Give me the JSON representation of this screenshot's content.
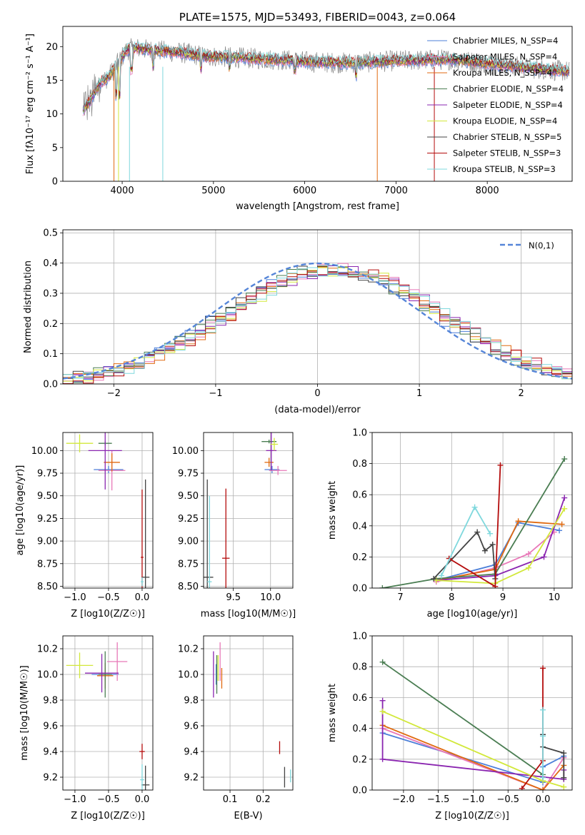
{
  "colors": {
    "chabrier_miles": "#4c7fd9",
    "salpeter_miles": "#e878b8",
    "kroupa_miles": "#e06a10",
    "chabrier_elodie": "#4a7d52",
    "salpeter_elodie": "#8a25b0",
    "kroupa_elodie": "#d2e83a",
    "chabrier_stelib": "#444444",
    "salpeter_stelib": "#b40c0c",
    "kroupa_stelib": "#7fd8dd"
  },
  "chart_data": [
    {
      "type": "line",
      "title": "PLATE=1575, MJD=53493, FIBERID=0043, z=0.064",
      "xlabel": "wavelength [Angstrom, rest frame]",
      "ylabel": "Flux [fλ10⁻¹⁷ erg cm⁻² s⁻¹ A⁻¹]",
      "xlim": [
        3350,
        8930
      ],
      "ylim": [
        0,
        23
      ],
      "xticks": [
        "4000",
        "5000",
        "6000",
        "7000",
        "8000"
      ],
      "yticks": [
        "0",
        "5",
        "10",
        "15",
        "20"
      ],
      "legend": [
        "Chabrier MILES, N_SSP=4",
        "Salpeter MILES, N_SSP=4",
        "Kroupa MILES, N_SSP=4",
        "Chabrier ELODIE, N_SSP=4",
        "Salpeter ELODIE, N_SSP=4",
        "Kroupa ELODIE, N_SSP=4",
        "Chabrier STELIB, N_SSP=5",
        "Salpeter STELIB, N_SSP=3",
        "Kroupa STELIB, N_SSP=3"
      ],
      "legend_placement": "right",
      "spectrum_envelope": {
        "x": [
          3570,
          3650,
          3750,
          3850,
          3950,
          4050,
          4150,
          4300,
          4500,
          4700,
          4900,
          5200,
          5500,
          5800,
          6100,
          6400,
          6700,
          7000,
          7300,
          7600,
          8000,
          8400,
          8900
        ],
        "y": [
          10.5,
          12.0,
          14.5,
          15.5,
          17.5,
          19.5,
          19.8,
          19.5,
          19.3,
          19.0,
          18.6,
          18.4,
          18.2,
          18.0,
          17.7,
          17.6,
          17.7,
          17.9,
          18.0,
          18.1,
          17.5,
          16.9,
          16.3
        ]
      },
      "grid": false
    },
    {
      "type": "line",
      "xlabel": "(data-model)/error",
      "ylabel": "Normed distribution",
      "xlim": [
        -2.5,
        2.5
      ],
      "ylim": [
        0,
        0.51
      ],
      "xticks": [
        "−2",
        "−1",
        "0",
        "1",
        "2"
      ],
      "yticks": [
        "0.0",
        "0.1",
        "0.2",
        "0.3",
        "0.4",
        "0.5"
      ],
      "legend": [
        "N(0,1)"
      ],
      "legend_placement": "top-right",
      "grid": true,
      "gaussian": {
        "mu": 0,
        "sigma": 1
      },
      "histogram_mean_shift": 0.2,
      "histogram_sigma": 1.05
    },
    {
      "type": "scatter",
      "xlabel": "Z [log10(Z/Z☉)]",
      "ylabel": "age  [log10(age/yr)]",
      "xlim": [
        -1.18,
        0.16
      ],
      "ylim": [
        8.48,
        10.2
      ],
      "xticks": [
        "−1.0",
        "−0.5",
        "0.0"
      ],
      "yticks": [
        "8.50",
        "8.75",
        "9.00",
        "9.25",
        "9.50",
        "9.75",
        "10.00"
      ],
      "grid": true,
      "points": [
        {
          "series": "chabrier_miles",
          "x": -0.5,
          "y": 9.79,
          "xerr": 0.22,
          "yerr": 0.04
        },
        {
          "series": "salpeter_miles",
          "x": -0.45,
          "y": 9.78,
          "xerr": 0.2,
          "yerr": 0.22
        },
        {
          "series": "kroupa_miles",
          "x": -0.45,
          "y": 9.87,
          "xerr": 0.12,
          "yerr": 0.1
        },
        {
          "series": "chabrier_elodie",
          "x": -0.55,
          "y": 10.08,
          "xerr": 0.1,
          "yerr": 0.02
        },
        {
          "series": "salpeter_elodie",
          "x": -0.55,
          "y": 10.0,
          "xerr": 0.25,
          "yerr": 0.43
        },
        {
          "series": "kroupa_elodie",
          "x": -0.93,
          "y": 10.08,
          "xerr": 0.2,
          "yerr": 0.1
        },
        {
          "series": "chabrier_stelib",
          "x": 0.05,
          "y": 8.6,
          "xerr": 0.06,
          "yerr": 1.08
        },
        {
          "series": "salpeter_stelib",
          "x": 0.0,
          "y": 8.82,
          "xerr": 0.02,
          "yerr": 0.75
        },
        {
          "series": "kroupa_stelib",
          "x": 0.0,
          "y": 8.55,
          "xerr": 0.02,
          "yerr": 0.05
        }
      ]
    },
    {
      "type": "scatter",
      "xlabel": "mass [log10(M/M☉)]",
      "ylabel": "",
      "xlim": [
        9.1,
        10.3
      ],
      "ylim": [
        8.48,
        10.2
      ],
      "xticks": [
        "9.5",
        "10.0"
      ],
      "yticks": [
        "8.50",
        "8.75",
        "9.00",
        "9.25",
        "9.50",
        "9.75",
        "10.00"
      ],
      "grid": true,
      "points": [
        {
          "series": "chabrier_miles",
          "x": 10.02,
          "y": 9.79,
          "xerr": 0.1,
          "yerr": 0.04
        },
        {
          "series": "salpeter_miles",
          "x": 10.1,
          "y": 9.78,
          "xerr": 0.12,
          "yerr": 0.05
        },
        {
          "series": "kroupa_miles",
          "x": 9.98,
          "y": 9.87,
          "xerr": 0.06,
          "yerr": 0.05
        },
        {
          "series": "chabrier_elodie",
          "x": 9.98,
          "y": 10.1,
          "xerr": 0.1,
          "yerr": 0.02
        },
        {
          "series": "salpeter_elodie",
          "x": 10.01,
          "y": 10.0,
          "xerr": 0.07,
          "yerr": 0.22
        },
        {
          "series": "kroupa_elodie",
          "x": 10.05,
          "y": 10.07,
          "xerr": 0.05,
          "yerr": 0.07
        },
        {
          "series": "chabrier_stelib",
          "x": 9.15,
          "y": 8.6,
          "xerr": 0.08,
          "yerr": 1.08
        },
        {
          "series": "salpeter_stelib",
          "x": 9.4,
          "y": 8.81,
          "xerr": 0.05,
          "yerr": 0.77
        },
        {
          "series": "kroupa_stelib",
          "x": 9.18,
          "y": 8.55,
          "xerr": 0.03,
          "yerr": 0.95
        }
      ]
    },
    {
      "type": "line",
      "xlabel": "age  [log10(age/yr)]",
      "ylabel": "mass weight",
      "xlim": [
        6.45,
        10.35
      ],
      "ylim": [
        0,
        1
      ],
      "xticks": [
        "7",
        "8",
        "9",
        "10"
      ],
      "yticks": [
        "0.0",
        "0.2",
        "0.4",
        "0.6",
        "0.8",
        "1.0"
      ],
      "grid": true,
      "series": [
        {
          "key": "chabrier_miles",
          "x": [
            7.7,
            8.85,
            9.3,
            10.1
          ],
          "y": [
            0.05,
            0.15,
            0.42,
            0.37
          ]
        },
        {
          "key": "salpeter_miles",
          "x": [
            7.7,
            8.85,
            9.5,
            10.0
          ],
          "y": [
            0.04,
            0.13,
            0.22,
            0.36
          ]
        },
        {
          "key": "kroupa_miles",
          "x": [
            7.7,
            8.85,
            9.3,
            10.15
          ],
          "y": [
            0.05,
            0.12,
            0.43,
            0.41
          ]
        },
        {
          "key": "chabrier_elodie",
          "x": [
            6.65,
            7.7,
            8.85,
            10.2
          ],
          "y": [
            0.0,
            0.06,
            0.09,
            0.83
          ]
        },
        {
          "key": "salpeter_elodie",
          "x": [
            7.7,
            8.85,
            9.8,
            10.2
          ],
          "y": [
            0.05,
            0.08,
            0.2,
            0.58
          ]
        },
        {
          "key": "kroupa_elodie",
          "x": [
            7.7,
            8.85,
            9.5,
            10.2
          ],
          "y": [
            0.05,
            0.03,
            0.13,
            0.51
          ]
        },
        {
          "key": "chabrier_stelib",
          "x": [
            7.65,
            8.5,
            8.65,
            8.8,
            8.85
          ],
          "y": [
            0.06,
            0.36,
            0.24,
            0.28,
            0.06
          ]
        },
        {
          "key": "salpeter_stelib",
          "x": [
            7.95,
            8.85,
            8.95
          ],
          "y": [
            0.19,
            0.01,
            0.79
          ]
        },
        {
          "key": "kroupa_stelib",
          "x": [
            7.8,
            8.45,
            8.75
          ],
          "y": [
            0.08,
            0.52,
            0.35
          ]
        }
      ]
    },
    {
      "type": "scatter",
      "xlabel": "Z [log10(Z/Z☉)]",
      "ylabel": "mass [log10(M/M☉)]",
      "xlim": [
        -1.18,
        0.16
      ],
      "ylim": [
        9.1,
        10.3
      ],
      "xticks": [
        "−1.0",
        "−0.5",
        "0.0"
      ],
      "yticks": [
        "9.2",
        "9.4",
        "9.6",
        "9.8",
        "10.0",
        "10.2"
      ],
      "grid": true,
      "points": [
        {
          "series": "chabrier_miles",
          "x": -0.55,
          "y": 10.0,
          "xerr": 0.2,
          "yerr": 0.05
        },
        {
          "series": "salpeter_miles",
          "x": -0.37,
          "y": 10.1,
          "xerr": 0.15,
          "yerr": 0.15
        },
        {
          "series": "kroupa_miles",
          "x": -0.55,
          "y": 9.99,
          "xerr": 0.12,
          "yerr": 0.1
        },
        {
          "series": "chabrier_elodie",
          "x": -0.55,
          "y": 10.0,
          "xerr": 0.1,
          "yerr": 0.18
        },
        {
          "series": "salpeter_elodie",
          "x": -0.6,
          "y": 10.01,
          "xerr": 0.25,
          "yerr": 0.15
        },
        {
          "series": "kroupa_elodie",
          "x": -0.93,
          "y": 10.07,
          "xerr": 0.2,
          "yerr": 0.1
        },
        {
          "series": "chabrier_stelib",
          "x": 0.05,
          "y": 9.14,
          "xerr": 0.06,
          "yerr": 0.15
        },
        {
          "series": "salpeter_stelib",
          "x": 0.0,
          "y": 9.4,
          "xerr": 0.04,
          "yerr": 0.06
        },
        {
          "series": "kroupa_stelib",
          "x": 0.0,
          "y": 9.18,
          "xerr": 0.03,
          "yerr": 0.12
        }
      ]
    },
    {
      "type": "scatter",
      "xlabel": "E(B-V)",
      "ylabel": "",
      "xlim": [
        0.02,
        0.29
      ],
      "ylim": [
        9.1,
        10.3
      ],
      "xticks": [
        "0.1",
        "0.2"
      ],
      "yticks": [
        "9.2",
        "9.4",
        "9.6",
        "9.8",
        "10.0",
        "10.2"
      ],
      "grid": true,
      "points": [
        {
          "series": "chabrier_miles",
          "x": 0.058,
          "y": 10.0,
          "xerr": 0.0,
          "yerr": 0.08
        },
        {
          "series": "salpeter_miles",
          "x": 0.07,
          "y": 10.1,
          "xerr": 0.0,
          "yerr": 0.15
        },
        {
          "series": "kroupa_miles",
          "x": 0.075,
          "y": 9.97,
          "xerr": 0.0,
          "yerr": 0.08
        },
        {
          "series": "chabrier_elodie",
          "x": 0.06,
          "y": 10.0,
          "xerr": 0.0,
          "yerr": 0.15
        },
        {
          "series": "salpeter_elodie",
          "x": 0.05,
          "y": 10.0,
          "xerr": 0.0,
          "yerr": 0.18
        },
        {
          "series": "kroupa_elodie",
          "x": 0.064,
          "y": 10.05,
          "xerr": 0.0,
          "yerr": 0.1
        },
        {
          "series": "chabrier_stelib",
          "x": 0.265,
          "y": 9.2,
          "xerr": 0.0,
          "yerr": 0.08
        },
        {
          "series": "salpeter_stelib",
          "x": 0.25,
          "y": 9.43,
          "xerr": 0.0,
          "yerr": 0.05
        },
        {
          "series": "kroupa_stelib",
          "x": 0.283,
          "y": 9.21,
          "xerr": 0.0,
          "yerr": 0.05
        }
      ]
    },
    {
      "type": "line",
      "xlabel": "Z [log10(Z/Z☉)]",
      "ylabel": "mass weight",
      "xlim": [
        -2.45,
        0.42
      ],
      "ylim": [
        0,
        1
      ],
      "xticks": [
        "−2.0",
        "−1.5",
        "−1.0",
        "−0.5",
        "0.0"
      ],
      "yticks": [
        "0.0",
        "0.2",
        "0.4",
        "0.6",
        "0.8",
        "1.0"
      ],
      "grid": true,
      "series": [
        {
          "key": "chabrier_miles",
          "x": [
            -2.3,
            0.0,
            0.0,
            0.3
          ],
          "y": [
            0.37,
            0.05,
            0.15,
            0.22
          ]
        },
        {
          "key": "salpeter_miles",
          "x": [
            -2.3,
            0.0,
            0.3
          ],
          "y": [
            0.4,
            0.0,
            0.21
          ]
        },
        {
          "key": "kroupa_miles",
          "x": [
            -2.3,
            0.0,
            0.3
          ],
          "y": [
            0.42,
            0.0,
            0.16
          ]
        },
        {
          "key": "chabrier_elodie",
          "x": [
            -2.3,
            0.0
          ],
          "y": [
            0.83,
            0.1
          ]
        },
        {
          "key": "salpeter_elodie",
          "x": [
            -2.3,
            -2.3,
            0.3,
            0.3
          ],
          "y": [
            0.58,
            0.2,
            0.07,
            0.13
          ]
        },
        {
          "key": "kroupa_elodie",
          "x": [
            -2.3,
            0.0,
            0.3
          ],
          "y": [
            0.51,
            0.06,
            0.02
          ]
        },
        {
          "key": "chabrier_stelib",
          "x": [
            0.0,
            0.0,
            0.3,
            0.3
          ],
          "y": [
            0.36,
            0.28,
            0.24,
            0.08
          ]
        },
        {
          "key": "salpeter_stelib",
          "x": [
            -0.3,
            0.0,
            0.0
          ],
          "y": [
            0.01,
            0.19,
            0.79
          ]
        },
        {
          "key": "kroupa_stelib",
          "x": [
            0.0,
            0.0,
            0.0
          ],
          "y": [
            0.52,
            0.35,
            0.08
          ]
        }
      ]
    }
  ]
}
